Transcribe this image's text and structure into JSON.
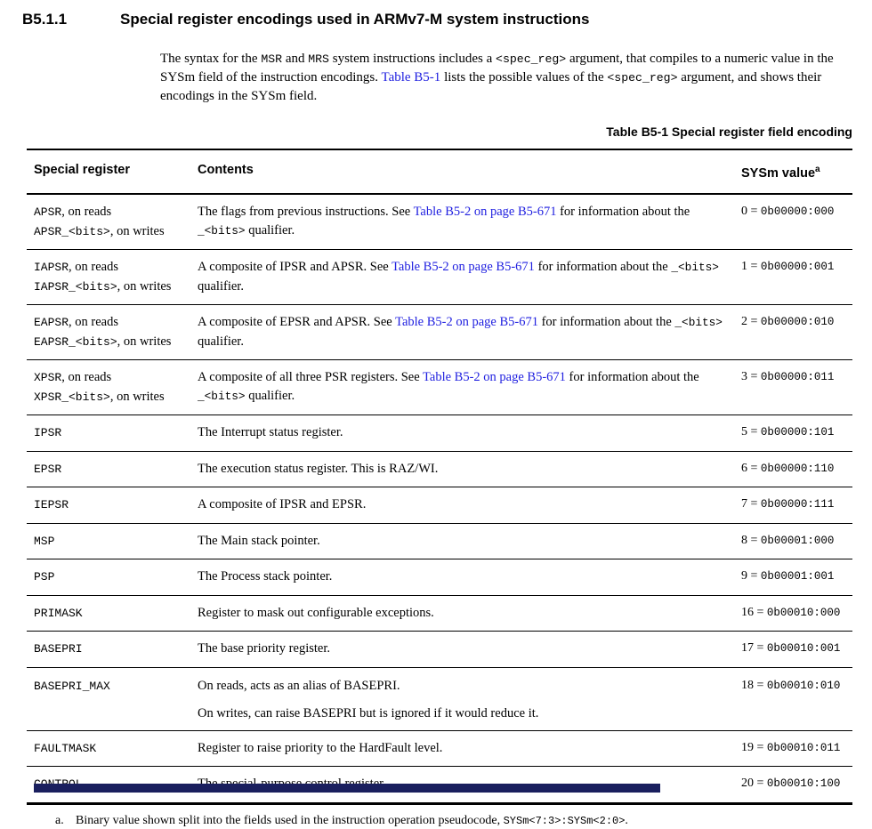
{
  "page": {
    "section_number": "B5.1.1",
    "section_title": "Special register encodings used in ARMv7-M system instructions",
    "intro": [
      {
        "t": "The syntax for the "
      },
      {
        "c": "MSR"
      },
      {
        "t": " and "
      },
      {
        "c": "MRS"
      },
      {
        "t": " system instructions includes a "
      },
      {
        "c": "<spec_reg>"
      },
      {
        "t": " argument, that compiles to a numeric value in the SYSm field of the instruction encodings. "
      },
      {
        "l": "Table B5-1"
      },
      {
        "t": " lists the possible values of the "
      },
      {
        "c": "<spec_reg>"
      },
      {
        "t": " argument, and shows their encodings in the SYSm field."
      }
    ],
    "table_caption": "Table B5-1 Special register field encoding",
    "footnote_marker": "a.",
    "footnote": [
      {
        "t": "Binary value shown split into the fields used in the instruction operation pseudocode, "
      },
      {
        "c": "SYSm<7:3>:SYSm<2:0>"
      },
      {
        "t": "."
      }
    ]
  },
  "table": {
    "headers": {
      "register": "Special register",
      "contents": "Contents",
      "value": "SYSm value",
      "value_superscript": "a"
    },
    "rows": [
      {
        "register": [
          [
            {
              "c": "APSR"
            },
            {
              "t": ", on reads"
            }
          ],
          [
            {
              "c": "APSR_<bits>"
            },
            {
              "t": ", on writes"
            }
          ]
        ],
        "contents": [
          [
            {
              "t": "The flags from previous instructions. See "
            },
            {
              "l": "Table B5-2 on page B5-671"
            },
            {
              "t": " for information about the "
            },
            {
              "c": "_<bits>"
            },
            {
              "t": " qualifier."
            }
          ]
        ],
        "value": [
          {
            "t": "0 = "
          },
          {
            "c": "0b00000:000"
          }
        ]
      },
      {
        "register": [
          [
            {
              "c": "IAPSR"
            },
            {
              "t": ", on reads"
            }
          ],
          [
            {
              "c": "IAPSR_<bits>"
            },
            {
              "t": ", on writes"
            }
          ]
        ],
        "contents": [
          [
            {
              "t": "A composite of IPSR and APSR. See "
            },
            {
              "l": "Table B5-2 on page B5-671"
            },
            {
              "t": " for information about the "
            },
            {
              "c": "_<bits>"
            },
            {
              "t": " qualifier."
            }
          ]
        ],
        "value": [
          {
            "t": "1 = "
          },
          {
            "c": "0b00000:001"
          }
        ]
      },
      {
        "register": [
          [
            {
              "c": "EAPSR"
            },
            {
              "t": ", on reads"
            }
          ],
          [
            {
              "c": "EAPSR_<bits>"
            },
            {
              "t": ", on writes"
            }
          ]
        ],
        "contents": [
          [
            {
              "t": "A composite of EPSR and APSR. See "
            },
            {
              "l": "Table B5-2 on page B5-671"
            },
            {
              "t": " for information about the "
            },
            {
              "c": "_<bits>"
            },
            {
              "t": " qualifier."
            }
          ]
        ],
        "value": [
          {
            "t": "2 = "
          },
          {
            "c": "0b00000:010"
          }
        ]
      },
      {
        "register": [
          [
            {
              "c": "XPSR"
            },
            {
              "t": ", on reads"
            }
          ],
          [
            {
              "c": "XPSR_<bits>"
            },
            {
              "t": ", on writes"
            }
          ]
        ],
        "contents": [
          [
            {
              "t": "A composite of all three PSR registers. See "
            },
            {
              "l": "Table B5-2 on page B5-671"
            },
            {
              "t": " for information about the "
            },
            {
              "c": "_<bits>"
            },
            {
              "t": " qualifier."
            }
          ]
        ],
        "value": [
          {
            "t": "3 = "
          },
          {
            "c": "0b00000:011"
          }
        ]
      },
      {
        "register": [
          [
            {
              "c": "IPSR"
            }
          ]
        ],
        "contents": [
          [
            {
              "t": "The Interrupt status register."
            }
          ]
        ],
        "value": [
          {
            "t": "5 = "
          },
          {
            "c": "0b00000:101"
          }
        ]
      },
      {
        "register": [
          [
            {
              "c": "EPSR"
            }
          ]
        ],
        "contents": [
          [
            {
              "t": "The execution status register. This is RAZ/WI."
            }
          ]
        ],
        "value": [
          {
            "t": "6 = "
          },
          {
            "c": "0b00000:110"
          }
        ]
      },
      {
        "register": [
          [
            {
              "c": "IEPSR"
            }
          ]
        ],
        "contents": [
          [
            {
              "t": "A composite of IPSR and EPSR."
            }
          ]
        ],
        "value": [
          {
            "t": "7 = "
          },
          {
            "c": "0b00000:111"
          }
        ]
      },
      {
        "register": [
          [
            {
              "c": "MSP"
            }
          ]
        ],
        "contents": [
          [
            {
              "t": "The Main stack pointer."
            }
          ]
        ],
        "value": [
          {
            "t": "8 = "
          },
          {
            "c": "0b00001:000"
          }
        ]
      },
      {
        "register": [
          [
            {
              "c": "PSP"
            }
          ]
        ],
        "contents": [
          [
            {
              "t": "The Process stack pointer."
            }
          ]
        ],
        "value": [
          {
            "t": "9 = "
          },
          {
            "c": "0b00001:001"
          }
        ]
      },
      {
        "register": [
          [
            {
              "c": "PRIMASK"
            }
          ]
        ],
        "contents": [
          [
            {
              "t": "Register to mask out configurable exceptions."
            }
          ]
        ],
        "value": [
          {
            "t": "16 = "
          },
          {
            "c": "0b00010:000"
          }
        ]
      },
      {
        "register": [
          [
            {
              "c": "BASEPRI"
            }
          ]
        ],
        "contents": [
          [
            {
              "t": "The base priority register."
            }
          ]
        ],
        "value": [
          {
            "t": "17 = "
          },
          {
            "c": "0b00010:001"
          }
        ]
      },
      {
        "register": [
          [
            {
              "c": "BASEPRI_MAX"
            }
          ]
        ],
        "contents": [
          [
            {
              "t": "On reads, acts as an alias of BASEPRI."
            }
          ],
          [
            {
              "t": "On writes, can raise BASEPRI but is ignored if it would reduce it."
            }
          ]
        ],
        "value": [
          {
            "t": "18 = "
          },
          {
            "c": "0b00010:010"
          }
        ],
        "tall": true
      },
      {
        "register": [
          [
            {
              "c": "FAULTMASK"
            }
          ]
        ],
        "contents": [
          [
            {
              "t": "Register to raise priority to the HardFault level."
            }
          ]
        ],
        "value": [
          {
            "t": "19 = "
          },
          {
            "c": "0b00010:011"
          }
        ]
      },
      {
        "register": [
          [
            {
              "c": "CONTROL"
            }
          ]
        ],
        "contents": [
          [
            {
              "t": "The special-purpose control register."
            }
          ]
        ],
        "value": [
          {
            "t": "20 = "
          },
          {
            "c": "0b00010:100"
          }
        ]
      }
    ]
  },
  "colors": {
    "link": "#2121e0",
    "text": "#000000",
    "rule": "#000000",
    "bottom_bar": "#1a1f5e"
  }
}
